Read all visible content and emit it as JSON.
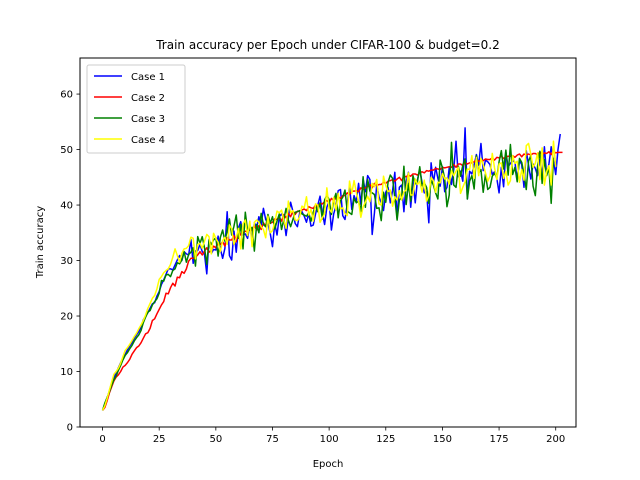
{
  "chart_data": {
    "type": "line",
    "title": "Train accuracy per Epoch under CIFAR-100 & budget=0.2",
    "xlabel": "Epoch",
    "ylabel": "Train accuracy",
    "xlim": [
      -9.95,
      208.95
    ],
    "ylim": [
      0,
      66.5
    ],
    "xticks": [
      0,
      25,
      50,
      75,
      100,
      125,
      150,
      175,
      200
    ],
    "yticks": [
      0,
      10,
      20,
      30,
      40,
      50,
      60
    ],
    "grid": false,
    "legend_position": "top-left",
    "series": [
      {
        "name": "Case 1",
        "color": "#0000ff",
        "values": [
          3.0,
          3.8,
          5.2,
          6.5,
          7.9,
          8.9,
          9.7,
          10.7,
          11.6,
          12.4,
          13.1,
          13.9,
          14.6,
          15.2,
          16.0,
          16.6,
          17.2,
          18.0,
          19.3,
          20.0,
          20.6,
          21.4,
          22.2,
          22.4,
          23.6,
          24.4,
          25.7,
          26.5,
          27.5,
          28.5,
          28.5,
          28.3,
          29.2,
          30.1,
          30.9,
          30.0,
          31.6,
          31.2,
          31.0,
          33.8,
          29.5,
          31.7,
          31.8,
          32.9,
          31.6,
          31.1,
          27.6,
          33.8,
          31.3,
          32.0,
          31.9,
          34.4,
          32.1,
          30.4,
          32.2,
          38.8,
          30.9,
          30.1,
          35.3,
          31.5,
          35.9,
          37.0,
          34.6,
          34.8,
          34.0,
          36.4,
          33.7,
          36.8,
          35.9,
          37.9,
          36.4,
          39.4,
          37.4,
          36.7,
          34.9,
          32.5,
          36.7,
          34.6,
          37.9,
          38.4,
          37.6,
          34.5,
          37.6,
          40.5,
          38.9,
          36.7,
          36.1,
          38.6,
          38.8,
          38.0,
          36.9,
          38.5,
          36.2,
          36.4,
          38.4,
          40.0,
          41.6,
          38.6,
          36.5,
          39.6,
          40.7,
          35.5,
          38.4,
          39.8,
          42.6,
          42.8,
          38.1,
          37.4,
          40.2,
          43.4,
          39.2,
          41.7,
          40.6,
          43.9,
          40.1,
          44.7,
          42.4,
          45.3,
          44.6,
          34.7,
          38.6,
          43.6,
          41.5,
          40.4,
          39.0,
          42.3,
          43.2,
          40.4,
          42.6,
          45.9,
          37.6,
          43.2,
          43.6,
          38.8,
          44.1,
          45.9,
          39.6,
          44.4,
          40.4,
          44.6,
          46.4,
          44.1,
          42.2,
          42.4,
          36.8,
          47.6,
          43.9,
          46.8,
          44.8,
          43.4,
          46.9,
          42.4,
          43.2,
          46.7,
          43.7,
          46.4,
          51.5,
          45.1,
          46.1,
          44.3,
          53.9,
          41.1,
          46.1,
          45.6,
          47.2,
          49.1,
          47.2,
          51.1,
          46.2,
          48.1,
          47.8,
          47.3,
          45.5,
          46.0,
          44.8,
          42.2,
          46.8,
          43.3,
          49.5,
          46.9,
          47.5,
          48.0,
          47.7,
          44.6,
          48.0,
          47.3,
          43.2,
          49.8,
          47.2,
          44.7,
          47.4,
          46.6,
          45.3,
          48.2,
          45.1,
          50.5,
          45.4,
          47.4,
          50.5,
          48.0,
          45.5,
          50.0,
          52.8
        ]
      },
      {
        "name": "Case 2",
        "color": "#ff0000",
        "values": [
          3.0,
          3.5,
          4.7,
          6.1,
          7.2,
          8.3,
          9.0,
          9.4,
          10.0,
          10.8,
          11.1,
          11.6,
          12.2,
          13.1,
          13.7,
          14.3,
          14.6,
          15.2,
          16.0,
          16.8,
          17.0,
          17.8,
          19.2,
          19.5,
          20.4,
          21.2,
          22.0,
          22.6,
          24.1,
          24.0,
          25.1,
          25.9,
          25.4,
          27.0,
          26.9,
          28.0,
          27.7,
          28.5,
          29.9,
          30.4,
          30.4,
          30.6,
          31.0,
          31.6,
          31.0,
          31.7,
          32.3,
          31.5,
          31.9,
          32.6,
          32.3,
          33.1,
          32.9,
          33.4,
          32.6,
          34.1,
          33.7,
          33.7,
          34.5,
          33.4,
          35.5,
          34.6,
          35.0,
          35.3,
          35.1,
          35.6,
          35.4,
          36.3,
          35.5,
          36.3,
          35.6,
          36.8,
          36.2,
          37.0,
          36.7,
          36.9,
          37.5,
          37.4,
          37.8,
          37.1,
          38.3,
          37.7,
          38.5,
          37.9,
          38.9,
          38.3,
          38.9,
          38.8,
          39.1,
          39.3,
          39.0,
          39.7,
          39.5,
          39.4,
          40.0,
          39.8,
          40.3,
          40.2,
          40.6,
          40.8,
          40.4,
          41.2,
          40.8,
          41.3,
          41.5,
          41.2,
          41.7,
          41.7,
          42.2,
          41.9,
          42.5,
          42.5,
          42.6,
          42.4,
          43.1,
          42.8,
          43.1,
          43.3,
          43.7,
          43.1,
          43.9,
          43.5,
          43.7,
          43.7,
          44.1,
          43.9,
          44.3,
          44.4,
          44.6,
          44.3,
          44.7,
          45.0,
          44.4,
          45.2,
          45.1,
          45.4,
          45.2,
          45.6,
          45.6,
          45.4,
          45.8,
          46.0,
          45.8,
          46.2,
          46.1,
          46.3,
          46.3,
          46.6,
          46.5,
          46.4,
          46.8,
          46.7,
          46.8,
          46.9,
          46.8,
          47.3,
          46.8,
          47.4,
          47.4,
          47.1,
          47.7,
          47.4,
          47.6,
          47.6,
          47.8,
          48.1,
          47.9,
          48.0,
          48.0,
          48.3,
          48.2,
          48.2,
          48.5,
          48.1,
          48.6,
          48.5,
          48.8,
          48.4,
          48.6,
          48.8,
          48.8,
          48.9,
          48.6,
          49.0,
          49.2,
          48.7,
          49.2,
          49.0,
          49.2,
          49.0,
          49.3,
          49.3,
          49.0,
          49.6,
          49.1,
          49.4,
          49.3,
          49.6,
          49.1,
          49.7,
          49.4,
          49.5,
          49.5,
          49.5
        ]
      },
      {
        "name": "Case 3",
        "color": "#008000",
        "values": [
          3.0,
          4.3,
          5.3,
          6.3,
          7.5,
          8.5,
          9.2,
          10.2,
          11.1,
          12.1,
          12.9,
          13.4,
          14.1,
          14.7,
          15.5,
          16.1,
          16.6,
          17.4,
          18.8,
          19.8,
          20.7,
          21.0,
          22.0,
          22.6,
          23.1,
          24.1,
          26.4,
          26.3,
          27.4,
          27.5,
          27.1,
          28.2,
          28.5,
          29.6,
          29.4,
          30.1,
          31.6,
          29.7,
          31.1,
          31.5,
          32.3,
          29.0,
          34.3,
          33.1,
          34.3,
          32.3,
          29.3,
          33.7,
          32.9,
          33.7,
          34.1,
          30.8,
          34.2,
          35.5,
          33.5,
          35.4,
          37.5,
          34.6,
          36.2,
          38.2,
          34.0,
          36.5,
          32.1,
          38.7,
          35.4,
          35.5,
          36.0,
          31.7,
          36.5,
          35.0,
          38.5,
          36.5,
          36.1,
          38.3,
          36.7,
          37.9,
          35.7,
          37.1,
          38.4,
          35.6,
          37.4,
          39.4,
          37.3,
          36.1,
          37.4,
          38.7,
          38.8,
          39.0,
          38.4,
          38.2,
          38.0,
          38.6,
          37.1,
          38.7,
          39.9,
          38.8,
          40.4,
          37.5,
          40.9,
          41.8,
          41.0,
          38.3,
          40.8,
          42.1,
          37.7,
          40.8,
          41.4,
          42.7,
          38.9,
          38.6,
          38.3,
          41.2,
          40.4,
          40.7,
          38.8,
          45.1,
          39.6,
          44.6,
          42.5,
          42.2,
          41.9,
          39.4,
          39.5,
          37.2,
          42.3,
          40.5,
          44.1,
          45.4,
          44.8,
          41.3,
          37.3,
          40.9,
          41.4,
          47.0,
          40.1,
          43.9,
          40.7,
          45.3,
          43.8,
          44.3,
          46.9,
          43.5,
          44.0,
          43.2,
          40.3,
          44.5,
          43.6,
          42.2,
          41.1,
          48.1,
          46.7,
          44.8,
          39.7,
          41.8,
          51.3,
          43.6,
          43.2,
          47.0,
          45.2,
          47.2,
          48.3,
          41.1,
          44.3,
          45.3,
          42.9,
          48.9,
          45.8,
          46.4,
          42.3,
          45.6,
          42.8,
          43.2,
          45.2,
          45.7,
          44.9,
          47.8,
          49.8,
          46.5,
          49.9,
          45.4,
          50.9,
          45.5,
          46.8,
          44.2,
          48.4,
          47.7,
          45.6,
          42.8,
          47.9,
          48.9,
          43.4,
          41.7,
          47.1,
          49.7,
          43.9,
          48.2,
          45.3,
          46.8,
          40.3,
          48.5
        ]
      },
      {
        "name": "Case 4",
        "color": "#ffff00",
        "values": [
          3.0,
          3.8,
          5.1,
          6.6,
          8.1,
          9.5,
          10.0,
          10.6,
          11.5,
          12.7,
          13.8,
          14.3,
          14.9,
          15.6,
          16.3,
          16.9,
          17.7,
          18.4,
          19.2,
          20.2,
          21.4,
          22.3,
          23.2,
          23.7,
          24.9,
          26.6,
          27.1,
          27.8,
          28.2,
          28.5,
          29.3,
          30.6,
          32.1,
          30.9,
          29.7,
          31.3,
          32.1,
          32.2,
          32.7,
          34.2,
          34.0,
          30.3,
          32.9,
          33.1,
          32.2,
          33.5,
          34.7,
          34.3,
          31.2,
          34.9,
          34.0,
          33.3,
          31.6,
          33.6,
          34.2,
          32.9,
          36.4,
          35.7,
          32.9,
          34.1,
          35.8,
          32.1,
          36.6,
          37.3,
          34.5,
          37.1,
          32.5,
          36.9,
          37.3,
          36.9,
          36.1,
          35.6,
          34.1,
          38.0,
          35.0,
          35.4,
          36.9,
          38.9,
          38.6,
          39.1,
          37.2,
          35.8,
          40.7,
          38.6,
          39.0,
          37.3,
          37.2,
          37.9,
          39.8,
          39.5,
          41.5,
          38.2,
          39.2,
          37.1,
          40.2,
          40.0,
          36.9,
          37.7,
          38.4,
          43.1,
          39.3,
          38.7,
          41.4,
          39.1,
          42.1,
          39.3,
          39.5,
          38.5,
          38.1,
          44.3,
          42.1,
          44.4,
          42.3,
          40.6,
          37.8,
          39.7,
          40.5,
          41.6,
          40.6,
          43.9,
          43.3,
          44.6,
          40.2,
          40.0,
          45.2,
          43.5,
          42.4,
          42.7,
          39.8,
          41.5,
          40.9,
          42.6,
          40.9,
          42.4,
          42.7,
          45.8,
          41.8,
          41.8,
          44.7,
          43.7,
          44.3,
          42.3,
          44.5,
          40.7,
          41.7,
          45.0,
          44.4,
          42.3,
          44.1,
          44.0,
          45.7,
          44.7,
          44.9,
          43.8,
          46.2,
          45.3,
          46.1,
          46.8,
          42.1,
          43.2,
          44.2,
          46.5,
          46.4,
          48.9,
          44.8,
          48.6,
          45.3,
          48.4,
          47.3,
          45.8,
          44.3,
          45.2,
          49.3,
          46.7,
          44.6,
          47.4,
          47.6,
          44.8,
          46.1,
          43.6,
          44.4,
          48.9,
          47.5,
          47.9,
          44.1,
          46.4,
          44.5,
          50.7,
          51.1,
          49.2,
          46.8,
          47.5,
          49.4,
          44.6,
          50.3,
          43.6,
          46.0,
          47.1,
          43.6,
          51.5,
          46.9
        ]
      }
    ]
  }
}
